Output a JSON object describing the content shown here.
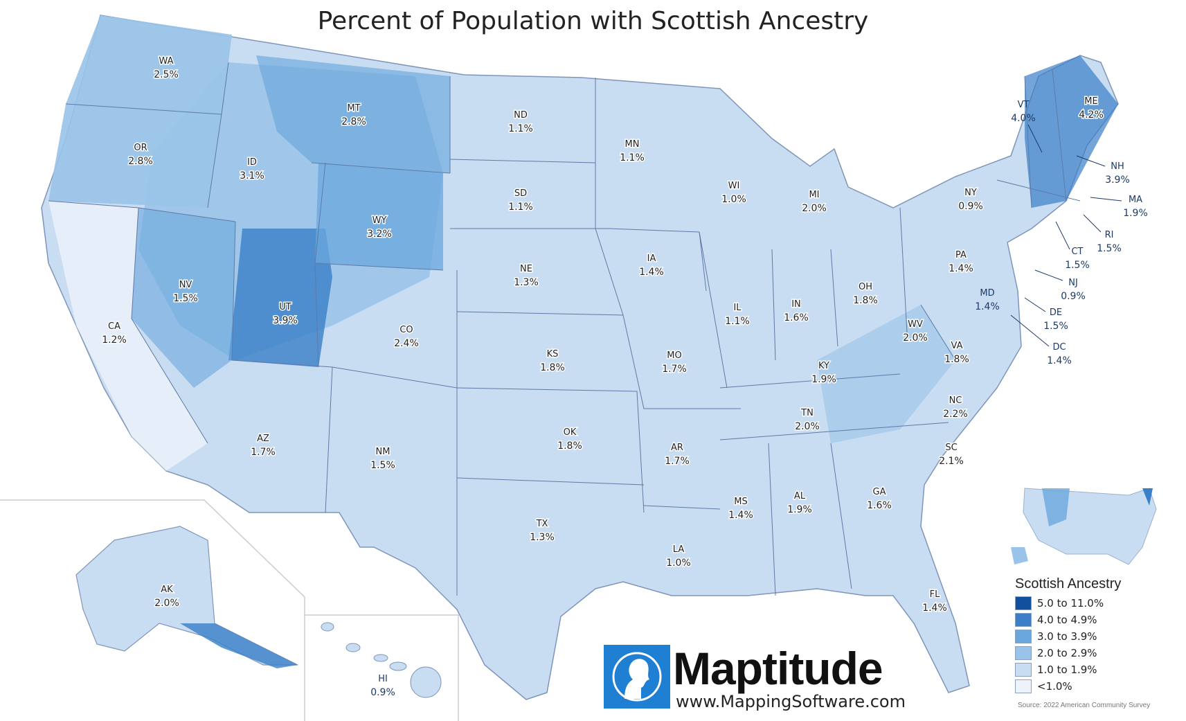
{
  "title": "Percent of Population with Scottish Ancestry",
  "legend": {
    "title": "Scottish Ancestry",
    "classes": [
      {
        "label": "5.0 to 11.0%",
        "color": "#0f4f9c"
      },
      {
        "label": "4.0 to 4.9%",
        "color": "#3a7fc7"
      },
      {
        "label": "3.0 to 3.9%",
        "color": "#6aa7dc"
      },
      {
        "label": "2.0 to 2.9%",
        "color": "#99c3e8"
      },
      {
        "label": "1.0 to 1.9%",
        "color": "#c8dcf2"
      },
      {
        "label": "<1.0%",
        "color": "#eef3fb"
      }
    ]
  },
  "source": "Source: 2022 American Community Survey",
  "brand": {
    "name": "Maptitude",
    "url": "www.MappingSoftware.com"
  },
  "states": {
    "WA": "2.5%",
    "OR": "2.8%",
    "CA": "1.2%",
    "NV": "1.5%",
    "ID": "3.1%",
    "MT": "2.8%",
    "WY": "3.2%",
    "UT": "3.9%",
    "AZ": "1.7%",
    "CO": "2.4%",
    "NM": "1.5%",
    "ND": "1.1%",
    "SD": "1.1%",
    "NE": "1.3%",
    "KS": "1.8%",
    "OK": "1.8%",
    "TX": "1.3%",
    "MN": "1.1%",
    "IA": "1.4%",
    "MO": "1.7%",
    "AR": "1.7%",
    "LA": "1.0%",
    "WI": "1.0%",
    "IL": "1.1%",
    "MI": "2.0%",
    "IN": "1.6%",
    "OH": "1.8%",
    "KY": "1.9%",
    "TN": "2.0%",
    "MS": "1.4%",
    "AL": "1.9%",
    "GA": "1.6%",
    "FL": "1.4%",
    "SC": "2.1%",
    "NC": "2.2%",
    "VA": "1.8%",
    "WV": "2.0%",
    "PA": "1.4%",
    "NY": "0.9%",
    "VT": "4.0%",
    "ME": "4.2%",
    "NH": "3.9%",
    "MA": "1.9%",
    "RI": "1.5%",
    "CT": "1.5%",
    "NJ": "0.9%",
    "DE": "1.5%",
    "MD": "1.4%",
    "DC": "1.4%",
    "AK": "2.0%",
    "HI": "0.9%"
  }
}
